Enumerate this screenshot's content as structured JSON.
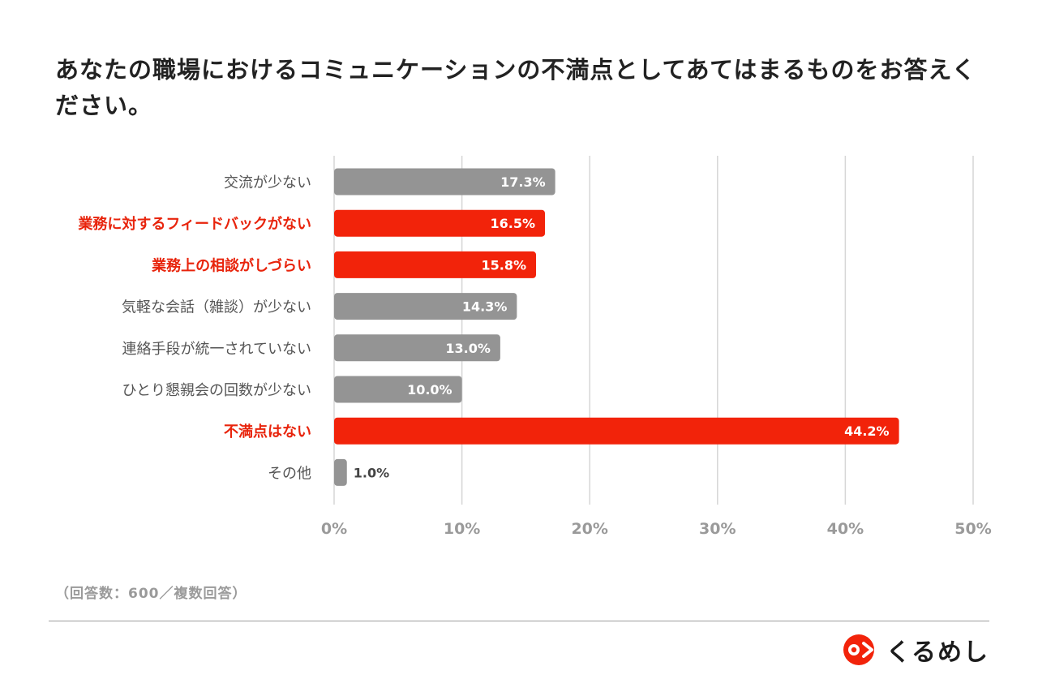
{
  "title": "あなたの職場におけるコミュニケーションの不満点としてあてはまるものをお答えください。",
  "chart_data": {
    "type": "bar",
    "orientation": "horizontal",
    "categories": [
      "交流が少ない",
      "業務に対するフィードバックがない",
      "業務上の相談がしづらい",
      "気軽な会話（雑談）が少ない",
      "連絡手段が統一されていない",
      "ひとり懇親会の回数が少ない",
      "不満点はない",
      "その他"
    ],
    "values": [
      17.3,
      16.5,
      15.8,
      14.3,
      13.0,
      10.0,
      44.2,
      1.0
    ],
    "data_labels": [
      "17.3%",
      "16.5%",
      "15.8%",
      "14.3%",
      "13.0%",
      "10.0%",
      "44.2%",
      "1.0%"
    ],
    "highlight": [
      false,
      true,
      true,
      false,
      false,
      false,
      true,
      false
    ],
    "xlim": [
      0,
      50
    ],
    "x_ticks": [
      0,
      10,
      20,
      30,
      40,
      50
    ],
    "x_tick_labels": [
      "0%",
      "10%",
      "20%",
      "30%",
      "40%",
      "50%"
    ],
    "grid": true,
    "colors": {
      "default_bar": "#949494",
      "highlight_bar": "#f2230a",
      "default_label": "#555555",
      "highlight_label": "#e8240c",
      "tick_label": "#9a9a9a",
      "grid": "#d6d6d6"
    }
  },
  "note": "（回答数：600／複数回答）",
  "brand": {
    "name": "くるめし",
    "logo_icon": "kurumeshi-logo-icon",
    "logo_color": "#f2230a"
  }
}
